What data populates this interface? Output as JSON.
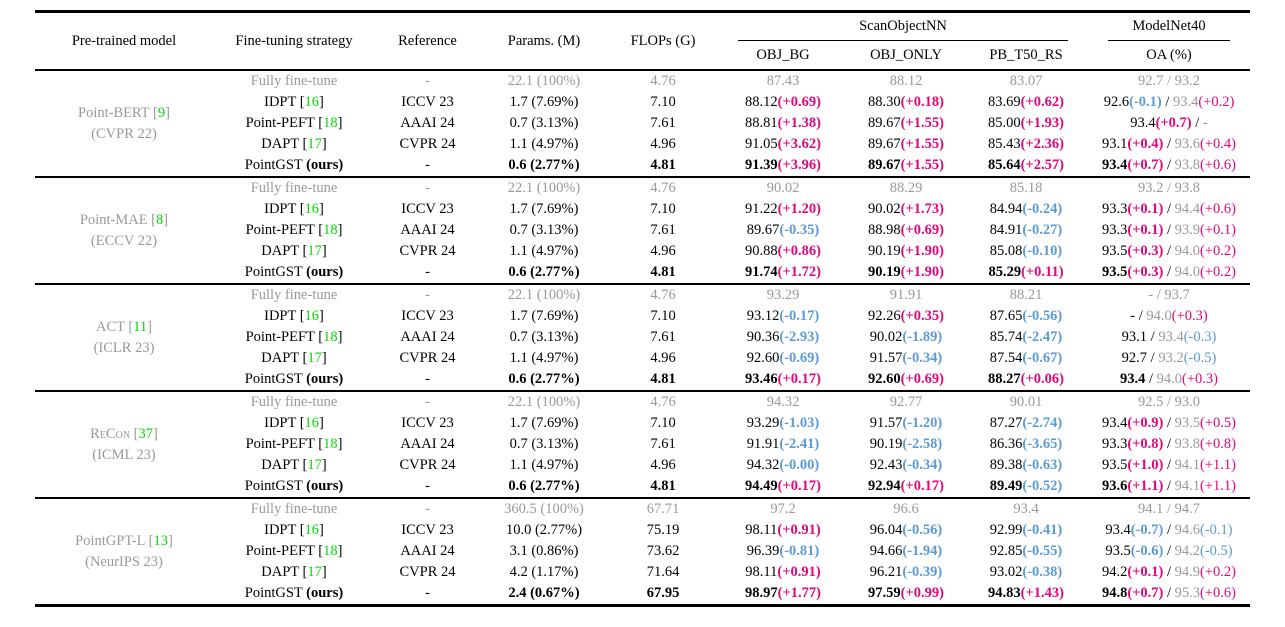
{
  "header": {
    "pretrained": "Pre-trained model",
    "strategy": "Fine-tuning strategy",
    "reference": "Reference",
    "params": "Params. (M)",
    "flops": "FLOPs (G)",
    "scanobjectnn": "ScanObjectNN",
    "modelnet40": "ModelNet40",
    "obj_bg": "OBJ_BG",
    "obj_only": "OBJ_ONLY",
    "pb_t50_rs": "PB_T50_RS",
    "oa": "OA (%)"
  },
  "colors": {
    "positive_delta": "#e0067d",
    "negative_delta": "#5b9bd5",
    "citation": "#00dd00",
    "muted_text": "#999999"
  },
  "groups": [
    {
      "model": "Point-BERT [9]",
      "venue": "(CVPR 22)",
      "small_caps": false,
      "rows": [
        {
          "style": "muted",
          "strategy": "Fully fine-tune",
          "reference": "-",
          "params": "22.1 (100%)",
          "flops": "4.76",
          "obj_bg": "87.43",
          "obj_only": "88.12",
          "pb_t50_rs": "83.07",
          "oa": "92.7 / 93.2"
        },
        {
          "style": "normal",
          "strategy": "IDPT [16]",
          "reference": "ICCV 23",
          "params": "1.7 (7.69%)",
          "flops": "7.10",
          "obj_bg": "88.12(+0.69)",
          "obj_only": "88.30(+0.18)",
          "pb_t50_rs": "83.69(+0.62)",
          "oa": "92.6(-0.1) / 93.4(+0.2)"
        },
        {
          "style": "normal",
          "strategy": "Point-PEFT [18]",
          "reference": "AAAI 24",
          "params": "0.7 (3.13%)",
          "flops": "7.61",
          "obj_bg": "88.81(+1.38)",
          "obj_only": "89.67(+1.55)",
          "pb_t50_rs": "85.00(+1.93)",
          "oa": "93.4(+0.7) / -"
        },
        {
          "style": "normal",
          "strategy": "DAPT [17]",
          "reference": "CVPR 24",
          "params": "1.1 (4.97%)",
          "flops": "4.96",
          "obj_bg": "91.05(+3.62)",
          "obj_only": "89.67(+1.55)",
          "pb_t50_rs": "85.43(+2.36)",
          "oa": "93.1(+0.4) / 93.6(+0.4)"
        },
        {
          "style": "ours",
          "strategy": "PointGST (ours)",
          "reference": "-",
          "params": "0.6 (2.77%)",
          "flops": "4.81",
          "obj_bg": "91.39(+3.96)",
          "obj_only": "89.67(+1.55)",
          "pb_t50_rs": "85.64(+2.57)",
          "oa": "93.4(+0.7) / 93.8(+0.6)"
        }
      ]
    },
    {
      "model": "Point-MAE [8]",
      "venue": "(ECCV 22)",
      "small_caps": false,
      "rows": [
        {
          "style": "muted",
          "strategy": "Fully fine-tune",
          "reference": "-",
          "params": "22.1 (100%)",
          "flops": "4.76",
          "obj_bg": "90.02",
          "obj_only": "88.29",
          "pb_t50_rs": "85.18",
          "oa": "93.2 / 93.8"
        },
        {
          "style": "normal",
          "strategy": "IDPT [16]",
          "reference": "ICCV 23",
          "params": "1.7 (7.69%)",
          "flops": "7.10",
          "obj_bg": "91.22(+1.20)",
          "obj_only": "90.02(+1.73)",
          "pb_t50_rs": "84.94(-0.24)",
          "oa": "93.3(+0.1) / 94.4(+0.6)"
        },
        {
          "style": "normal",
          "strategy": "Point-PEFT [18]",
          "reference": "AAAI 24",
          "params": "0.7 (3.13%)",
          "flops": "7.61",
          "obj_bg": "89.67(-0.35)",
          "obj_only": "88.98(+0.69)",
          "pb_t50_rs": "84.91(-0.27)",
          "oa": "93.3(+0.1) / 93.9(+0.1)"
        },
        {
          "style": "normal",
          "strategy": "DAPT [17]",
          "reference": "CVPR 24",
          "params": "1.1 (4.97%)",
          "flops": "4.96",
          "obj_bg": "90.88(+0.86)",
          "obj_only": "90.19(+1.90)",
          "pb_t50_rs": "85.08(-0.10)",
          "oa": "93.5(+0.3) / 94.0(+0.2)"
        },
        {
          "style": "ours",
          "strategy": "PointGST (ours)",
          "reference": "-",
          "params": "0.6 (2.77%)",
          "flops": "4.81",
          "obj_bg": "91.74(+1.72)",
          "obj_only": "90.19(+1.90)",
          "pb_t50_rs": "85.29(+0.11)",
          "oa": "93.5(+0.3) / 94.0(+0.2)"
        }
      ]
    },
    {
      "model": "ACT [11]",
      "venue": "(ICLR 23)",
      "small_caps": false,
      "rows": [
        {
          "style": "muted",
          "strategy": "Fully fine-tune",
          "reference": "-",
          "params": "22.1 (100%)",
          "flops": "4.76",
          "obj_bg": "93.29",
          "obj_only": "91.91",
          "pb_t50_rs": "88.21",
          "oa": "- / 93.7"
        },
        {
          "style": "normal",
          "strategy": "IDPT [16]",
          "reference": "ICCV 23",
          "params": "1.7 (7.69%)",
          "flops": "7.10",
          "obj_bg": "93.12(-0.17)",
          "obj_only": "92.26(+0.35)",
          "pb_t50_rs": "87.65(-0.56)",
          "oa": "- / 94.0(+0.3)"
        },
        {
          "style": "normal",
          "strategy": "Point-PEFT [18]",
          "reference": "AAAI 24",
          "params": "0.7 (3.13%)",
          "flops": "7.61",
          "obj_bg": "90.36(-2.93)",
          "obj_only": "90.02(-1.89)",
          "pb_t50_rs": "85.74(-2.47)",
          "oa": "93.1 / 93.4(-0.3)"
        },
        {
          "style": "normal",
          "strategy": "DAPT [17]",
          "reference": "CVPR 24",
          "params": "1.1 (4.97%)",
          "flops": "4.96",
          "obj_bg": "92.60(-0.69)",
          "obj_only": "91.57(-0.34)",
          "pb_t50_rs": "87.54(-0.67)",
          "oa": "92.7 / 93.2(-0.5)"
        },
        {
          "style": "ours",
          "strategy": "PointGST (ours)",
          "reference": "-",
          "params": "0.6 (2.77%)",
          "flops": "4.81",
          "obj_bg": "93.46(+0.17)",
          "obj_only": "92.60(+0.69)",
          "pb_t50_rs": "88.27(+0.06)",
          "oa": "93.4 / 94.0(+0.3)"
        }
      ]
    },
    {
      "model": "ReCon [37]",
      "venue": "(ICML 23)",
      "small_caps": true,
      "rows": [
        {
          "style": "muted",
          "strategy": "Fully fine-tune",
          "reference": "-",
          "params": "22.1 (100%)",
          "flops": "4.76",
          "obj_bg": "94.32",
          "obj_only": "92.77",
          "pb_t50_rs": "90.01",
          "oa": "92.5 / 93.0"
        },
        {
          "style": "normal",
          "strategy": "IDPT [16]",
          "reference": "ICCV 23",
          "params": "1.7 (7.69%)",
          "flops": "7.10",
          "obj_bg": "93.29(-1.03)",
          "obj_only": "91.57(-1.20)",
          "pb_t50_rs": "87.27(-2.74)",
          "oa": "93.4(+0.9) / 93.5(+0.5)"
        },
        {
          "style": "normal",
          "strategy": "Point-PEFT [18]",
          "reference": "AAAI 24",
          "params": "0.7 (3.13%)",
          "flops": "7.61",
          "obj_bg": "91.91(-2.41)",
          "obj_only": "90.19(-2.58)",
          "pb_t50_rs": "86.36(-3.65)",
          "oa": "93.3(+0.8) / 93.8(+0.8)"
        },
        {
          "style": "normal",
          "strategy": "DAPT [17]",
          "reference": "CVPR 24",
          "params": "1.1 (4.97%)",
          "flops": "4.96",
          "obj_bg": "94.32(-0.00)",
          "obj_only": "92.43(-0.34)",
          "pb_t50_rs": "89.38(-0.63)",
          "oa": "93.5(+1.0) / 94.1(+1.1)"
        },
        {
          "style": "ours",
          "strategy": "PointGST (ours)",
          "reference": "-",
          "params": "0.6 (2.77%)",
          "flops": "4.81",
          "obj_bg": "94.49(+0.17)",
          "obj_only": "92.94(+0.17)",
          "pb_t50_rs": "89.49(-0.52)",
          "oa": "93.6(+1.1) / 94.1(+1.1)"
        }
      ]
    },
    {
      "model": "PointGPT-L [13]",
      "venue": "(NeurIPS 23)",
      "small_caps": false,
      "rows": [
        {
          "style": "muted",
          "strategy": "Fully fine-tune",
          "reference": "-",
          "params": "360.5 (100%)",
          "flops": "67.71",
          "obj_bg": "97.2",
          "obj_only": "96.6",
          "pb_t50_rs": "93.4",
          "oa": "94.1 / 94.7"
        },
        {
          "style": "normal",
          "strategy": "IDPT [16]",
          "reference": "ICCV 23",
          "params": "10.0 (2.77%)",
          "flops": "75.19",
          "obj_bg": "98.11(+0.91)",
          "obj_only": "96.04(-0.56)",
          "pb_t50_rs": "92.99(-0.41)",
          "oa": "93.4(-0.7) / 94.6(-0.1)"
        },
        {
          "style": "normal",
          "strategy": "Point-PEFT [18]",
          "reference": "AAAI 24",
          "params": "3.1 (0.86%)",
          "flops": "73.62",
          "obj_bg": "96.39(-0.81)",
          "obj_only": "94.66(-1.94)",
          "pb_t50_rs": "92.85(-0.55)",
          "oa": "93.5(-0.6) / 94.2(-0.5)"
        },
        {
          "style": "normal",
          "strategy": "DAPT [17]",
          "reference": "CVPR 24",
          "params": "4.2 (1.17%)",
          "flops": "71.64",
          "obj_bg": "98.11(+0.91)",
          "obj_only": "96.21(-0.39)",
          "pb_t50_rs": "93.02(-0.38)",
          "oa": "94.2(+0.1) / 94.9(+0.2)"
        },
        {
          "style": "ours",
          "strategy": "PointGST (ours)",
          "reference": "-",
          "params": "2.4 (0.67%)",
          "flops": "67.95",
          "obj_bg": "98.97(+1.77)",
          "obj_only": "97.59(+0.99)",
          "pb_t50_rs": "94.83(+1.43)",
          "oa": "94.8(+0.7) / 95.3(+0.6)"
        }
      ]
    }
  ]
}
